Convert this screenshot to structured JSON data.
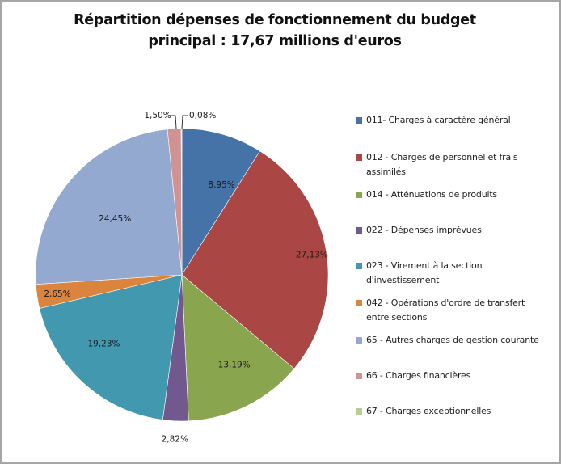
{
  "chart_data": {
    "type": "pie",
    "title": "Répartition dépenses de fonctionnement du budget principal : 17,67 millions d'euros",
    "title_lines": [
      "Répartition dépenses de fonctionnement du budget",
      "principal : 17,67 millions d'euros"
    ],
    "start_angle": "12 o'clock",
    "direction": "clockwise",
    "legend_position": "right",
    "slices": [
      {
        "label": "011- Charges à caractère général",
        "value": 8.95,
        "data_label": "8,95%",
        "color": "#4572a7"
      },
      {
        "label": "012 - Charges de personnel et frais assimilés",
        "value": 27.13,
        "data_label": "27,13%",
        "color": "#aa4643"
      },
      {
        "label": "014 - Atténuations de produits",
        "value": 13.19,
        "data_label": "13,19%",
        "color": "#89a54e"
      },
      {
        "label": "022 - Dépenses imprévues",
        "value": 2.82,
        "data_label": "2,82%",
        "color": "#71588f"
      },
      {
        "label": "023 - Virement à la section d'investissement",
        "value": 19.23,
        "data_label": "19,23%",
        "color": "#4198af"
      },
      {
        "label": "042 - Opérations d'ordre de transfert entre sections",
        "value": 2.65,
        "data_label": "2,65%",
        "color": "#db843d"
      },
      {
        "label": "65 - Autres charges de gestion courante",
        "value": 24.45,
        "data_label": "24,45%",
        "color": "#93a9cf"
      },
      {
        "label": "66 - Charges financières",
        "value": 1.5,
        "data_label": "1,50%",
        "color": "#d19392"
      },
      {
        "label": "67 - Charges exceptionnelles",
        "value": 0.08,
        "data_label": "0,08%",
        "color": "#b9cd96"
      }
    ]
  }
}
